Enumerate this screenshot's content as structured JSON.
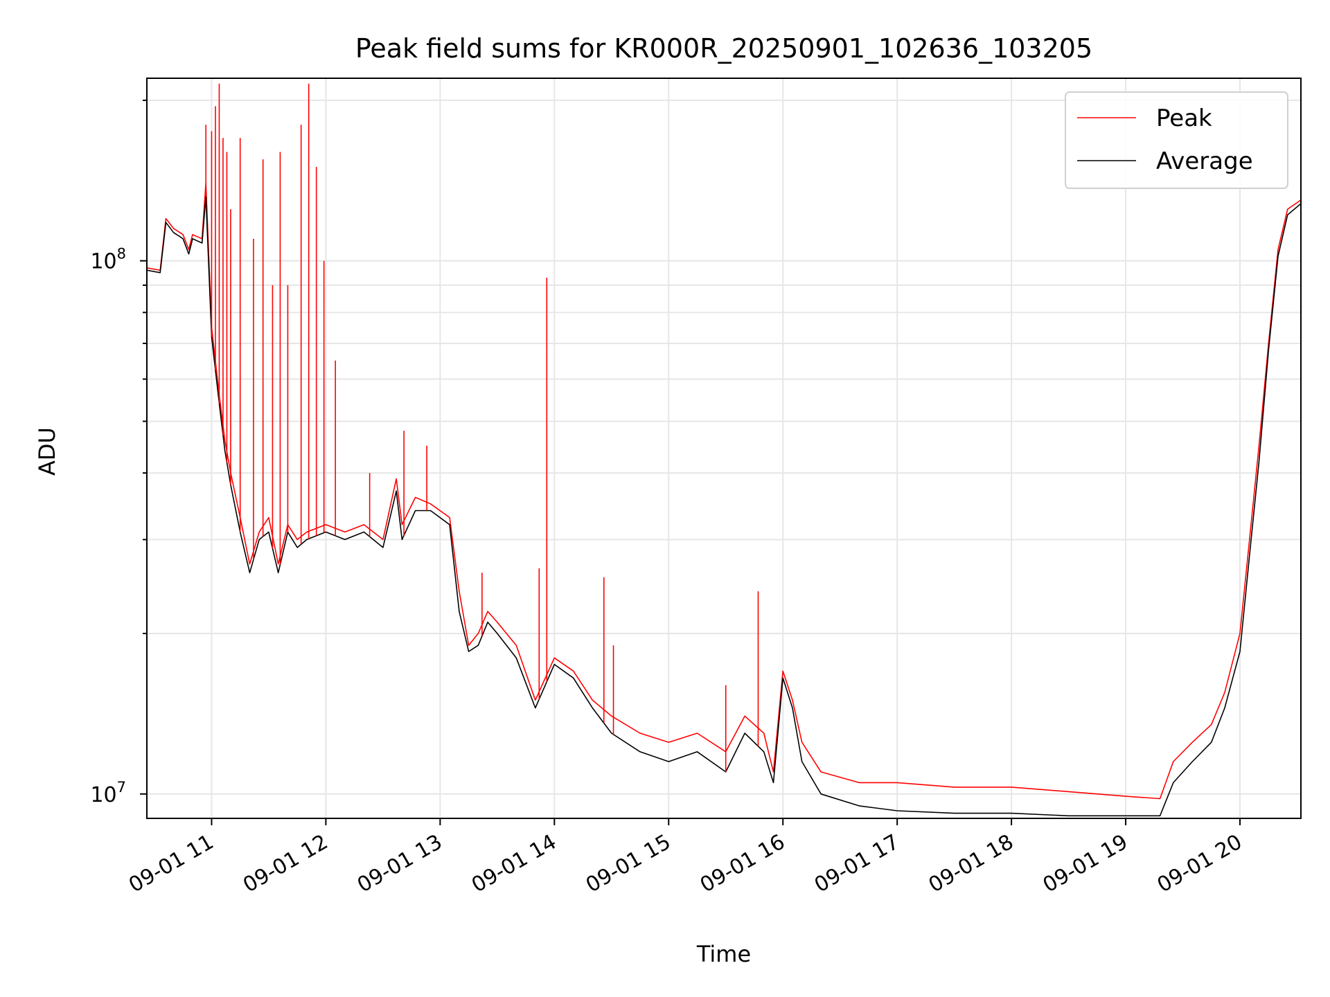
{
  "chart_data": {
    "type": "line",
    "title": "Peak field sums for KR000R_20250901_102636_103205",
    "xlabel": "Time",
    "ylabel": "ADU",
    "yscale": "log",
    "ylim": [
      9000000,
      220000000
    ],
    "xlim": [
      "2025-09-01 10:26",
      "2025-09-01 20:32"
    ],
    "grid": true,
    "legend_position": "top-right",
    "x_tick_labels": [
      "09-01 11",
      "09-01 12",
      "09-01 13",
      "09-01 14",
      "09-01 15",
      "09-01 16",
      "09-01 17",
      "09-01 18",
      "09-01 19",
      "09-01 20"
    ],
    "x_ticks": [
      "2025-09-01 11:00",
      "2025-09-01 12:00",
      "2025-09-01 13:00",
      "2025-09-01 14:00",
      "2025-09-01 15:00",
      "2025-09-01 16:00",
      "2025-09-01 17:00",
      "2025-09-01 18:00",
      "2025-09-01 19:00",
      "2025-09-01 20:00"
    ],
    "y_ticks": [
      {
        "value": 10000000,
        "label_base": "10",
        "label_exp": "7"
      },
      {
        "value": 100000000,
        "label_base": "10",
        "label_exp": "8"
      }
    ],
    "series": [
      {
        "name": "Peak",
        "color": "#ff0000",
        "x": [
          "2025-09-01 10:26",
          "2025-09-01 10:33",
          "2025-09-01 10:36",
          "2025-09-01 10:40",
          "2025-09-01 10:45",
          "2025-09-01 10:48",
          "2025-09-01 10:50",
          "2025-09-01 10:55",
          "2025-09-01 10:57",
          "2025-09-01 11:00",
          "2025-09-01 11:04",
          "2025-09-01 11:07",
          "2025-09-01 11:10",
          "2025-09-01 11:15",
          "2025-09-01 11:20",
          "2025-09-01 11:25",
          "2025-09-01 11:30",
          "2025-09-01 11:35",
          "2025-09-01 11:40",
          "2025-09-01 11:45",
          "2025-09-01 11:50",
          "2025-09-01 12:00",
          "2025-09-01 12:10",
          "2025-09-01 12:20",
          "2025-09-01 12:30",
          "2025-09-01 12:37",
          "2025-09-01 12:40",
          "2025-09-01 12:47",
          "2025-09-01 12:55",
          "2025-09-01 13:05",
          "2025-09-01 13:10",
          "2025-09-01 13:15",
          "2025-09-01 13:20",
          "2025-09-01 13:25",
          "2025-09-01 13:30",
          "2025-09-01 13:40",
          "2025-09-01 13:50",
          "2025-09-01 14:00",
          "2025-09-01 14:10",
          "2025-09-01 14:20",
          "2025-09-01 14:30",
          "2025-09-01 14:45",
          "2025-09-01 15:00",
          "2025-09-01 15:15",
          "2025-09-01 15:30",
          "2025-09-01 15:40",
          "2025-09-01 15:50",
          "2025-09-01 15:55",
          "2025-09-01 16:00",
          "2025-09-01 16:05",
          "2025-09-01 16:10",
          "2025-09-01 16:20",
          "2025-09-01 16:40",
          "2025-09-01 17:00",
          "2025-09-01 17:30",
          "2025-09-01 18:00",
          "2025-09-01 18:30",
          "2025-09-01 19:00",
          "2025-09-01 19:18",
          "2025-09-01 19:25",
          "2025-09-01 19:35",
          "2025-09-01 19:45",
          "2025-09-01 19:52",
          "2025-09-01 20:00",
          "2025-09-01 20:05",
          "2025-09-01 20:10",
          "2025-09-01 20:15",
          "2025-09-01 20:20",
          "2025-09-01 20:25",
          "2025-09-01 20:32"
        ],
        "y": [
          97000000,
          96000000,
          120000000,
          115000000,
          112000000,
          105000000,
          112000000,
          110000000,
          140000000,
          75000000,
          56000000,
          46000000,
          40000000,
          33000000,
          27000000,
          31000000,
          33000000,
          27000000,
          32000000,
          30000000,
          31000000,
          32000000,
          31000000,
          32000000,
          30000000,
          39000000,
          32000000,
          36000000,
          35000000,
          33000000,
          24000000,
          19000000,
          20000000,
          22000000,
          21000000,
          19000000,
          15000000,
          18000000,
          17000000,
          15000000,
          14000000,
          13000000,
          12500000,
          13000000,
          12000000,
          14000000,
          13000000,
          11000000,
          17000000,
          15000000,
          12500000,
          11000000,
          10500000,
          10500000,
          10300000,
          10300000,
          10100000,
          9900000,
          9800000,
          11500000,
          12500000,
          13500000,
          15500000,
          20000000,
          30000000,
          45000000,
          70000000,
          105000000,
          125000000,
          130000000
        ]
      },
      {
        "name": "Average",
        "color": "#000000",
        "x": [
          "2025-09-01 10:26",
          "2025-09-01 10:33",
          "2025-09-01 10:36",
          "2025-09-01 10:40",
          "2025-09-01 10:45",
          "2025-09-01 10:48",
          "2025-09-01 10:50",
          "2025-09-01 10:55",
          "2025-09-01 10:57",
          "2025-09-01 11:00",
          "2025-09-01 11:04",
          "2025-09-01 11:07",
          "2025-09-01 11:10",
          "2025-09-01 11:15",
          "2025-09-01 11:20",
          "2025-09-01 11:25",
          "2025-09-01 11:30",
          "2025-09-01 11:35",
          "2025-09-01 11:40",
          "2025-09-01 11:45",
          "2025-09-01 11:50",
          "2025-09-01 12:00",
          "2025-09-01 12:10",
          "2025-09-01 12:20",
          "2025-09-01 12:30",
          "2025-09-01 12:37",
          "2025-09-01 12:40",
          "2025-09-01 12:47",
          "2025-09-01 12:55",
          "2025-09-01 13:05",
          "2025-09-01 13:10",
          "2025-09-01 13:15",
          "2025-09-01 13:20",
          "2025-09-01 13:25",
          "2025-09-01 13:30",
          "2025-09-01 13:40",
          "2025-09-01 13:50",
          "2025-09-01 14:00",
          "2025-09-01 14:10",
          "2025-09-01 14:20",
          "2025-09-01 14:30",
          "2025-09-01 14:45",
          "2025-09-01 15:00",
          "2025-09-01 15:15",
          "2025-09-01 15:30",
          "2025-09-01 15:40",
          "2025-09-01 15:50",
          "2025-09-01 15:55",
          "2025-09-01 16:00",
          "2025-09-01 16:05",
          "2025-09-01 16:10",
          "2025-09-01 16:20",
          "2025-09-01 16:40",
          "2025-09-01 17:00",
          "2025-09-01 17:30",
          "2025-09-01 18:00",
          "2025-09-01 18:30",
          "2025-09-01 19:00",
          "2025-09-01 19:18",
          "2025-09-01 19:25",
          "2025-09-01 19:35",
          "2025-09-01 19:45",
          "2025-09-01 19:52",
          "2025-09-01 20:00",
          "2025-09-01 20:05",
          "2025-09-01 20:10",
          "2025-09-01 20:15",
          "2025-09-01 20:20",
          "2025-09-01 20:25",
          "2025-09-01 20:32"
        ],
        "y": [
          96000000,
          95000000,
          118000000,
          113000000,
          110000000,
          103000000,
          110000000,
          108000000,
          132000000,
          72000000,
          54000000,
          44000000,
          38000000,
          31000000,
          26000000,
          30000000,
          31000000,
          26000000,
          31000000,
          29000000,
          30000000,
          31000000,
          30000000,
          31000000,
          29000000,
          37000000,
          30000000,
          34000000,
          34000000,
          32000000,
          22000000,
          18500000,
          19000000,
          21000000,
          20000000,
          18000000,
          14500000,
          17500000,
          16500000,
          14500000,
          13000000,
          12000000,
          11500000,
          12000000,
          11000000,
          13000000,
          12000000,
          10500000,
          16500000,
          14500000,
          11500000,
          10000000,
          9500000,
          9300000,
          9200000,
          9200000,
          9100000,
          9100000,
          9100000,
          10500000,
          11500000,
          12500000,
          14500000,
          18500000,
          28000000,
          42000000,
          68000000,
          102000000,
          122000000,
          128000000
        ]
      }
    ],
    "spikes": {
      "series": "Peak",
      "x": [
        "2025-09-01 10:57",
        "2025-09-01 11:00",
        "2025-09-01 11:02",
        "2025-09-01 11:04",
        "2025-09-01 11:06",
        "2025-09-01 11:08",
        "2025-09-01 11:10",
        "2025-09-01 11:15",
        "2025-09-01 11:22",
        "2025-09-01 11:27",
        "2025-09-01 11:32",
        "2025-09-01 11:36",
        "2025-09-01 11:40",
        "2025-09-01 11:47",
        "2025-09-01 11:51",
        "2025-09-01 11:55",
        "2025-09-01 11:59",
        "2025-09-01 12:05",
        "2025-09-01 12:23",
        "2025-09-01 12:41",
        "2025-09-01 12:53",
        "2025-09-01 13:22",
        "2025-09-01 13:52",
        "2025-09-01 13:56",
        "2025-09-01 14:26",
        "2025-09-01 14:31",
        "2025-09-01 15:30",
        "2025-09-01 15:47"
      ],
      "y": [
        180000000,
        175000000,
        195000000,
        215000000,
        170000000,
        160000000,
        125000000,
        170000000,
        110000000,
        155000000,
        90000000,
        160000000,
        90000000,
        180000000,
        215000000,
        150000000,
        100000000,
        65000000,
        40000000,
        48000000,
        45000000,
        26000000,
        26500000,
        93000000,
        25500000,
        19000000,
        16000000,
        24000000
      ]
    }
  },
  "legend": {
    "peak_label": "Peak",
    "average_label": "Average"
  }
}
